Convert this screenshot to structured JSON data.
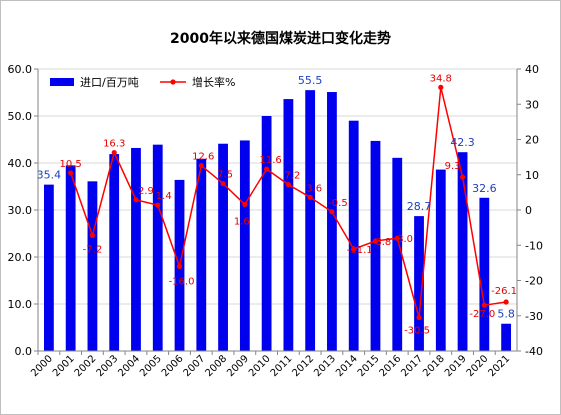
{
  "chart_data": {
    "type": "bar",
    "title": "2000年以来德国煤炭进口变化走势",
    "categories": [
      "2000",
      "2001",
      "2002",
      "2003",
      "2004",
      "2005",
      "2006",
      "2007",
      "2008",
      "2009",
      "2010",
      "2011",
      "2012",
      "2013",
      "2014",
      "2015",
      "2016",
      "2017",
      "2018",
      "2019",
      "2020",
      "2021"
    ],
    "series": [
      {
        "name": "进口/百万吨",
        "type": "bar",
        "axis": "left",
        "color": "#0000ee",
        "label_color": "#1f3fbf",
        "values": [
          35.4,
          39.5,
          36.1,
          41.9,
          43.2,
          43.9,
          36.4,
          40.9,
          44.1,
          44.8,
          50.0,
          53.6,
          55.5,
          55.1,
          49.0,
          44.7,
          41.1,
          28.7,
          38.6,
          42.3,
          32.6,
          5.8
        ],
        "labels": [
          "35.4",
          "",
          "",
          "",
          "",
          "",
          "",
          "",
          "",
          "",
          "",
          "",
          "55.5",
          "",
          "",
          "",
          "",
          "28.7",
          "",
          "42.3",
          "32.6",
          "5.8"
        ]
      },
      {
        "name": "增长率%",
        "type": "line",
        "axis": "right",
        "color": "#ff0000",
        "values": [
          null,
          10.5,
          -7.2,
          16.3,
          2.9,
          1.4,
          -16.0,
          12.6,
          7.5,
          1.6,
          11.6,
          7.2,
          3.6,
          -0.5,
          -11.1,
          -8.8,
          -8.0,
          -30.5,
          34.8,
          9.3,
          -27.0,
          -26.1
        ],
        "labels": [
          "",
          "10.5",
          "-7.2",
          "16.3",
          "2.9",
          "1.4",
          "-16.0",
          "12.6",
          "7.5",
          "1.6",
          "11.6",
          "7.2",
          "3.6",
          "-0.5",
          "-11.1",
          "-8.8",
          "-8.0",
          "-30.5",
          "34.8",
          "9.3",
          "-27.0",
          "-26.1"
        ]
      }
    ],
    "ylim": [
      0,
      60
    ],
    "y2lim": [
      -40,
      40
    ],
    "yticks": [
      "0.0",
      "10.0",
      "20.0",
      "30.0",
      "40.0",
      "50.0",
      "60.0"
    ],
    "y2ticks": [
      "-40",
      "-30",
      "-20",
      "-10",
      "0",
      "10",
      "20",
      "30",
      "40"
    ],
    "xlabel": "",
    "ylabel": "",
    "grid": true,
    "legend_position": "top-left"
  }
}
